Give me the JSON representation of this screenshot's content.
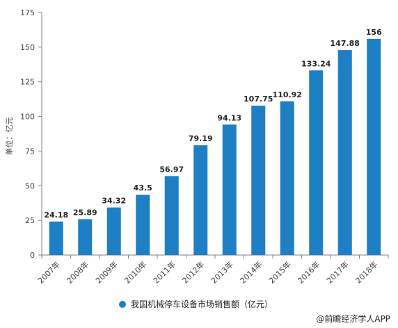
{
  "chart_data": {
    "type": "bar",
    "categories": [
      "2007年",
      "2008年",
      "2009年",
      "2010年",
      "2011年",
      "2012年",
      "2013年",
      "2014年",
      "2015年",
      "2016年",
      "2017年",
      "2018年"
    ],
    "series": [
      {
        "name": "我国机械停车设备市场销售额（亿元）",
        "values": [
          24.18,
          25.89,
          34.32,
          43.5,
          56.97,
          79.19,
          94.13,
          107.75,
          110.92,
          133.24,
          147.88,
          156
        ],
        "labels": [
          "24.18",
          "25.89",
          "34.32",
          "43.5",
          "56.97",
          "79.19",
          "94.13",
          "107.75",
          "110.92",
          "133.24",
          "147.88",
          "156"
        ],
        "color": "#1f7fc4"
      }
    ],
    "ylabel": "单位：亿元",
    "ylim": [
      0,
      175
    ],
    "yticks": [
      0,
      25,
      50,
      75,
      100,
      125,
      150,
      175
    ],
    "grid": false,
    "legend_position": "bottom",
    "axis_color": "#7f7f7f"
  },
  "footer": {
    "source": "@前瞻经济学人APP"
  }
}
